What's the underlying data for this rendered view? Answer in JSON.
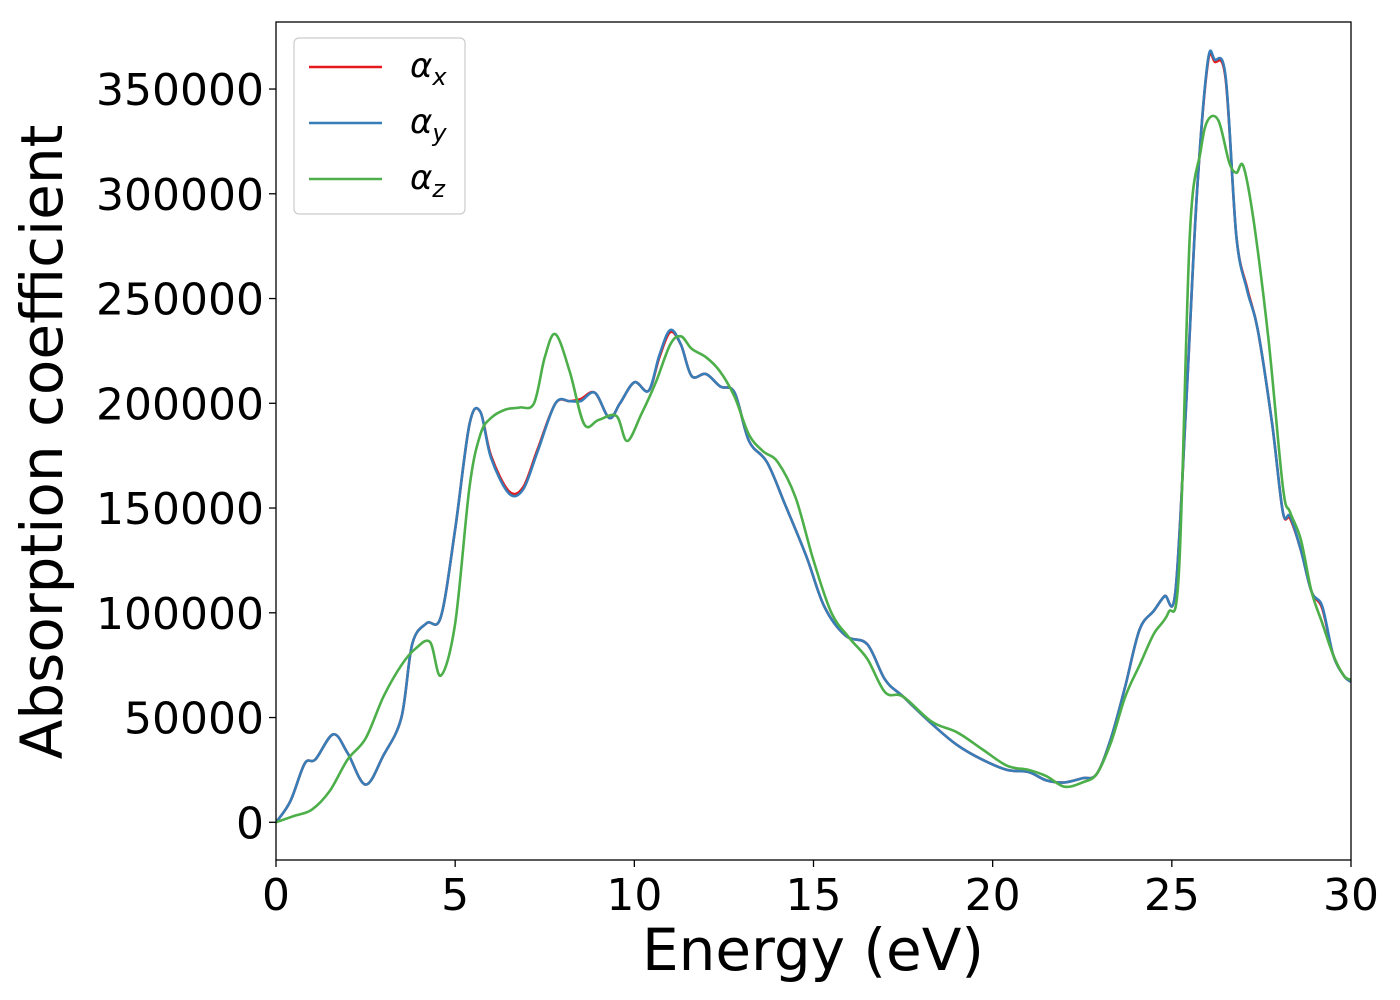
{
  "chart_data": {
    "type": "line",
    "xlabel": "Energy (eV)",
    "ylabel": "Absorption coefficient",
    "xlim": [
      0,
      30
    ],
    "ylim": [
      -18000,
      382000
    ],
    "x_ticks": [
      "0",
      "5",
      "10",
      "15",
      "20",
      "25",
      "30"
    ],
    "y_ticks": [
      "0",
      "50000",
      "100000",
      "150000",
      "200000",
      "250000",
      "300000",
      "350000"
    ],
    "grid": false,
    "legend_position": "top-left",
    "series": [
      {
        "name": "αx",
        "symbol": "α",
        "subscript": "x",
        "color": "#e41a1c",
        "x": [
          0,
          0.4,
          0.8,
          1.1,
          1.6,
          2.0,
          2.5,
          3.0,
          3.5,
          3.8,
          4.2,
          4.6,
          5.0,
          5.4,
          5.7,
          6.0,
          6.5,
          6.9,
          7.3,
          7.8,
          8.2,
          8.5,
          8.9,
          9.3,
          9.6,
          10.0,
          10.4,
          10.7,
          11.0,
          11.3,
          11.6,
          12.0,
          12.4,
          12.8,
          13.2,
          13.7,
          14.2,
          14.8,
          15.3,
          15.9,
          16.5,
          17.0,
          17.5,
          18.3,
          19.0,
          19.7,
          20.4,
          21.0,
          21.5,
          22.0,
          22.5,
          22.9,
          23.3,
          23.7,
          24.1,
          24.5,
          24.8,
          25.1,
          25.4,
          25.7,
          26.0,
          26.2,
          26.5,
          26.8,
          27.1,
          27.4,
          27.8,
          28.1,
          28.3,
          28.6,
          28.9,
          29.2,
          29.5,
          29.8,
          30
        ],
        "y": [
          0,
          10000,
          28000,
          30000,
          42000,
          33000,
          18000,
          32000,
          50000,
          85000,
          95000,
          98000,
          140000,
          190000,
          196000,
          175000,
          158000,
          160000,
          178000,
          200000,
          201000,
          202000,
          205000,
          193000,
          200000,
          210000,
          206000,
          222000,
          234000,
          228000,
          213000,
          214000,
          208000,
          205000,
          182000,
          172000,
          152000,
          127000,
          103000,
          89000,
          85000,
          68000,
          60000,
          47000,
          37000,
          30000,
          25000,
          24000,
          20000,
          19000,
          21000,
          23000,
          40000,
          65000,
          92000,
          101000,
          108000,
          110000,
          200000,
          300000,
          362000,
          363000,
          355000,
          280000,
          255000,
          235000,
          190000,
          148000,
          145000,
          130000,
          110000,
          102000,
          80000,
          70000,
          67000
        ]
      },
      {
        "name": "αy",
        "symbol": "α",
        "subscript": "y",
        "color": "#377eb8",
        "x": [
          0,
          0.4,
          0.8,
          1.1,
          1.6,
          2.0,
          2.5,
          3.0,
          3.5,
          3.8,
          4.2,
          4.6,
          5.0,
          5.4,
          5.7,
          6.0,
          6.5,
          6.9,
          7.3,
          7.8,
          8.2,
          8.5,
          8.9,
          9.3,
          9.6,
          10.0,
          10.4,
          10.7,
          11.0,
          11.3,
          11.6,
          12.0,
          12.4,
          12.8,
          13.2,
          13.7,
          14.2,
          14.8,
          15.3,
          15.9,
          16.5,
          17.0,
          17.5,
          18.3,
          19.0,
          19.7,
          20.4,
          21.0,
          21.5,
          22.0,
          22.5,
          22.9,
          23.3,
          23.7,
          24.1,
          24.5,
          24.8,
          25.1,
          25.4,
          25.7,
          26.0,
          26.2,
          26.5,
          26.8,
          27.1,
          27.4,
          27.8,
          28.1,
          28.3,
          28.6,
          28.9,
          29.2,
          29.5,
          29.8,
          30
        ],
        "y": [
          0,
          10000,
          28000,
          30000,
          42000,
          33000,
          18000,
          32000,
          50000,
          85000,
          95000,
          98000,
          140000,
          190000,
          196000,
          174000,
          157000,
          159000,
          177000,
          200000,
          201000,
          201000,
          205000,
          193000,
          200000,
          210000,
          206000,
          223000,
          235000,
          228000,
          213000,
          214000,
          208000,
          205000,
          182000,
          172000,
          152000,
          127000,
          103000,
          89000,
          85000,
          68000,
          60000,
          47000,
          37000,
          30000,
          25000,
          24000,
          20000,
          19000,
          21000,
          23000,
          40000,
          65000,
          92000,
          101000,
          108000,
          110000,
          200000,
          300000,
          363000,
          364000,
          356000,
          280000,
          254000,
          235000,
          190000,
          148000,
          146000,
          130000,
          110000,
          103000,
          80000,
          70000,
          67000
        ]
      },
      {
        "name": "αz",
        "symbol": "α",
        "subscript": "z",
        "color": "#4daf4a",
        "x": [
          0,
          0.5,
          1.0,
          1.5,
          2.0,
          2.5,
          3.0,
          3.5,
          3.9,
          4.3,
          4.6,
          5.0,
          5.4,
          5.7,
          6.0,
          6.4,
          6.8,
          7.2,
          7.5,
          7.8,
          8.2,
          8.6,
          9.0,
          9.5,
          9.8,
          10.2,
          10.6,
          11.0,
          11.3,
          11.6,
          12.0,
          12.4,
          12.8,
          13.2,
          13.6,
          14.0,
          14.5,
          15.0,
          15.5,
          16.0,
          16.5,
          17.0,
          17.5,
          18.3,
          19.0,
          19.7,
          20.4,
          21.0,
          21.5,
          22.0,
          22.5,
          22.9,
          23.3,
          23.7,
          24.1,
          24.5,
          24.9,
          25.2,
          25.5,
          25.8,
          26.0,
          26.3,
          26.6,
          26.8,
          27.0,
          27.3,
          27.7,
          28.1,
          28.3,
          28.6,
          28.9,
          29.2,
          29.5,
          29.8,
          30
        ],
        "y": [
          0,
          3000,
          6000,
          15000,
          30000,
          40000,
          60000,
          75000,
          83000,
          86000,
          70000,
          95000,
          160000,
          185000,
          193000,
          197000,
          198000,
          200000,
          222000,
          233000,
          215000,
          190000,
          192000,
          194000,
          182000,
          195000,
          210000,
          228000,
          232000,
          226000,
          222000,
          215000,
          203000,
          185000,
          177000,
          172000,
          155000,
          125000,
          100000,
          88000,
          78000,
          62000,
          60000,
          48000,
          43000,
          35000,
          27000,
          25000,
          22000,
          17000,
          19000,
          23000,
          38000,
          60000,
          75000,
          90000,
          100000,
          120000,
          280000,
          320000,
          335000,
          335000,
          315000,
          310000,
          313000,
          285000,
          230000,
          160000,
          148000,
          135000,
          110000,
          95000,
          80000,
          70000,
          68000
        ]
      }
    ]
  }
}
